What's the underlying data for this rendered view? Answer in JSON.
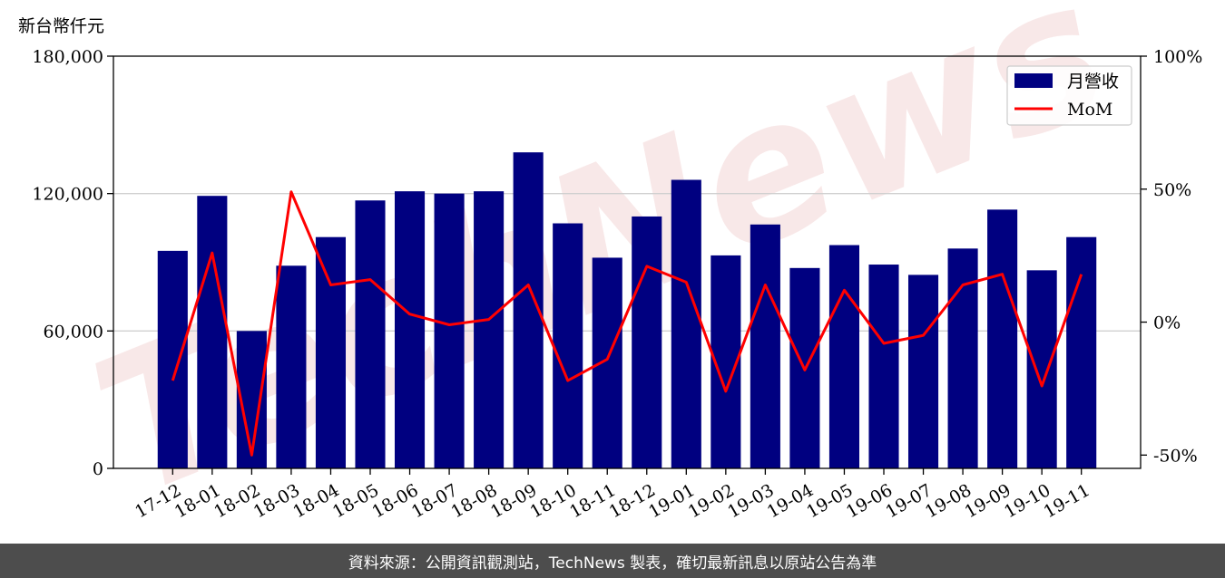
{
  "y_unit_label": "新台幣仟元",
  "footer": {
    "text": "資料來源：公開資訊觀測站，TechNews 製表，確切最新訊息以原站公告為準",
    "background": "#4d4d4d",
    "color": "#ffffff"
  },
  "watermark": {
    "text": "TechNews",
    "color": "#f4d6d6"
  },
  "colors": {
    "bar": "#000080",
    "line": "#ff0000",
    "grid": "#d0d0d0"
  },
  "chart_data": {
    "type": "bar",
    "categories": [
      "17-12",
      "18-01",
      "18-02",
      "18-03",
      "18-04",
      "18-05",
      "18-06",
      "18-07",
      "18-08",
      "18-09",
      "18-10",
      "18-11",
      "18-12",
      "19-01",
      "19-02",
      "19-03",
      "19-04",
      "19-05",
      "19-06",
      "19-07",
      "19-08",
      "19-09",
      "19-10",
      "19-11"
    ],
    "series": [
      {
        "name": "月營收",
        "type": "bar",
        "axis": "left",
        "values": [
          95000,
          119000,
          60000,
          88500,
          101000,
          117000,
          121000,
          120000,
          121000,
          138000,
          107000,
          92000,
          110000,
          126000,
          93000,
          106500,
          87500,
          97500,
          89000,
          84500,
          96000,
          113000,
          86500,
          101000
        ]
      },
      {
        "name": "MoM",
        "type": "line",
        "axis": "right",
        "values": [
          -22,
          26,
          -50,
          49,
          14,
          16,
          3,
          -1,
          1,
          14,
          -22,
          -14,
          21,
          15,
          -26,
          14,
          -18,
          12,
          -8,
          -5,
          14,
          18,
          -24,
          18
        ]
      }
    ],
    "ylim_left": [
      0,
      180000
    ],
    "yticks_left": [
      0,
      60000,
      120000,
      180000
    ],
    "ytick_labels_left": [
      "0",
      "60,000",
      "120,000",
      "180,000"
    ],
    "ylim_right": [
      -55,
      100
    ],
    "yticks_right": [
      -50,
      0,
      50,
      100
    ],
    "ytick_labels_right": [
      "-50%",
      "0%",
      "50%",
      "100%"
    ],
    "grid": "horizontal",
    "legend": "top-right",
    "legend_entries": [
      "月營收",
      "MoM"
    ]
  }
}
